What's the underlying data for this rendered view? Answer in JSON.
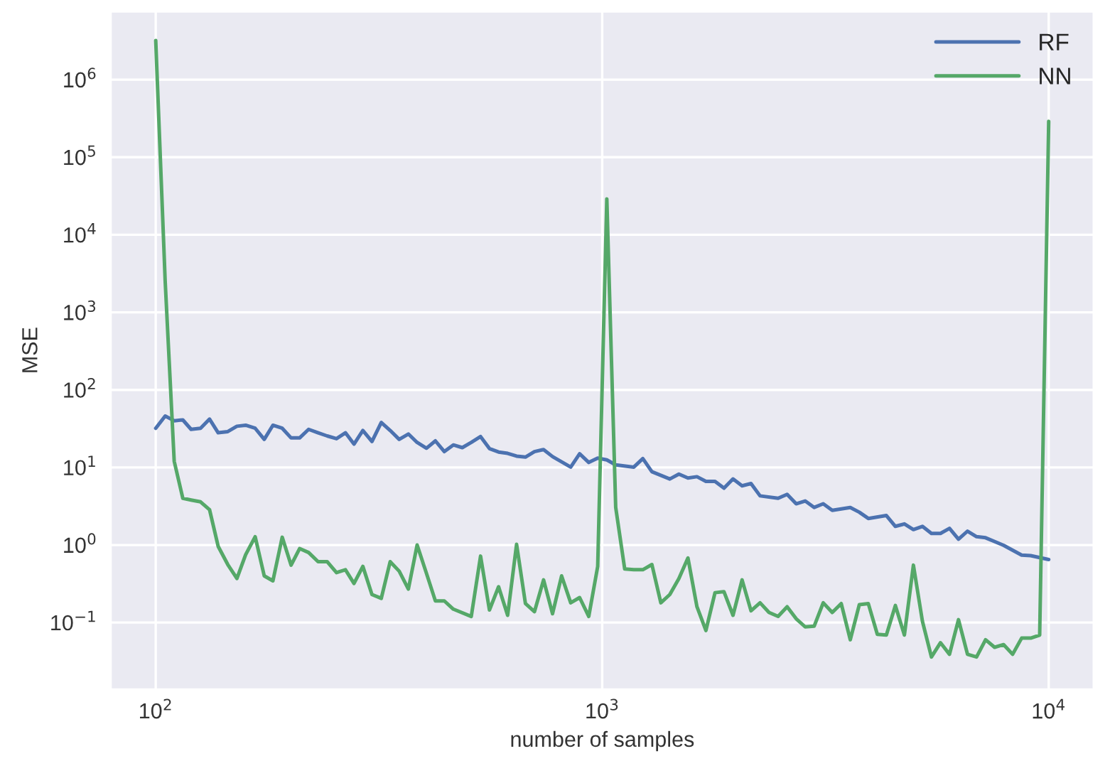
{
  "chart_data": {
    "type": "line",
    "xlabel": "number of samples",
    "ylabel": "MSE",
    "log": "xy",
    "grid": true,
    "legend": "top right",
    "line_style": "solid",
    "marker": "none",
    "xlim": [
      79.4,
      12589
    ],
    "ylim": [
      0.0139,
      7500000
    ],
    "xticks": [
      {
        "value": 100,
        "label": "10$^{2}$"
      },
      {
        "value": 1000,
        "label": "10$^{3}$"
      },
      {
        "value": 10000,
        "label": "10$^{4}$"
      }
    ],
    "yticks": [
      {
        "value": 0.1,
        "label": "10$^{−1}$"
      },
      {
        "value": 1,
        "label": "10$^{0}$"
      },
      {
        "value": 10,
        "label": "10$^{1}$"
      },
      {
        "value": 100,
        "label": "10$^{2}$"
      },
      {
        "value": 1000,
        "label": "10$^{3}$"
      },
      {
        "value": 10000,
        "label": "10$^{4}$"
      },
      {
        "value": 100000,
        "label": "10$^{5}$"
      },
      {
        "value": 1000000,
        "label": "10$^{6}$"
      }
    ],
    "series": [
      {
        "name": "RF",
        "color": "#4c72b0",
        "x": [
          100,
          105,
          110,
          115,
          120,
          126,
          132,
          138,
          145,
          152,
          159,
          167,
          175,
          183,
          192,
          201,
          210,
          220,
          231,
          242,
          254,
          266,
          278,
          291,
          305,
          320,
          335,
          351,
          368,
          385,
          404,
          423,
          443,
          464,
          486,
          509,
          534,
          559,
          586,
          614,
          643,
          673,
          705,
          739,
          774,
          850,
          890,
          933,
          977,
          1024,
          1072,
          1177,
          1233,
          1292,
          1417,
          1485,
          1556,
          1630,
          1707,
          1789,
          1874,
          1963,
          2057,
          2154,
          2257,
          2477,
          2595,
          2719,
          2848,
          2984,
          3126,
          3275,
          3594,
          3765,
          3944,
          4329,
          4535,
          4751,
          4977,
          5214,
          5462,
          5722,
          5995,
          6280,
          6579,
          6893,
          7221,
          7925,
          8697,
          9112,
          10000
        ],
        "values": [
          32,
          46,
          40,
          41,
          31,
          32,
          42,
          28,
          29,
          34,
          35,
          32,
          23,
          35,
          32,
          24,
          24,
          31,
          28,
          25.5,
          23.5,
          28,
          20,
          30,
          21.6,
          38,
          30,
          23,
          27,
          21,
          17.7,
          22,
          16,
          19.5,
          18,
          21,
          25,
          17.5,
          15.8,
          15.2,
          14,
          13.6,
          16,
          17,
          13.8,
          10.1,
          15,
          11.6,
          13.2,
          12.5,
          10.8,
          10.1,
          13,
          8.8,
          7.1,
          8.2,
          7.3,
          7.6,
          6.6,
          6.6,
          5.4,
          7.1,
          5.8,
          6.2,
          4.3,
          4.0,
          4.5,
          3.4,
          3.7,
          3.05,
          3.4,
          2.8,
          3.05,
          2.65,
          2.2,
          2.4,
          1.74,
          1.87,
          1.58,
          1.74,
          1.41,
          1.41,
          1.64,
          1.19,
          1.51,
          1.28,
          1.24,
          0.99,
          0.74,
          0.73,
          0.65
        ]
      },
      {
        "name": "NN",
        "color": "#55a868",
        "x": [
          100,
          105,
          110,
          115,
          120,
          126,
          132,
          138,
          145,
          152,
          159,
          167,
          175,
          183,
          192,
          201,
          210,
          220,
          231,
          242,
          254,
          266,
          278,
          291,
          305,
          320,
          335,
          351,
          368,
          385,
          404,
          423,
          443,
          464,
          509,
          534,
          559,
          586,
          614,
          643,
          673,
          705,
          739,
          774,
          811,
          850,
          890,
          933,
          977,
          1024,
          1072,
          1123,
          1177,
          1233,
          1292,
          1353,
          1417,
          1485,
          1556,
          1630,
          1707,
          1789,
          1874,
          1963,
          2057,
          2154,
          2257,
          2364,
          2477,
          2595,
          2719,
          2848,
          2984,
          3126,
          3275,
          3430,
          3594,
          3765,
          3944,
          4132,
          4329,
          4535,
          4751,
          4977,
          5214,
          5462,
          5722,
          5995,
          6280,
          6579,
          6893,
          7221,
          7565,
          7925,
          8302,
          8697,
          9112,
          9545,
          10000
        ],
        "values": [
          3200000,
          2500,
          12,
          4.0,
          3.8,
          3.6,
          2.85,
          0.96,
          0.56,
          0.37,
          0.75,
          1.28,
          0.4,
          0.345,
          1.26,
          0.55,
          0.9,
          0.8,
          0.61,
          0.61,
          0.44,
          0.48,
          0.32,
          0.53,
          0.23,
          0.205,
          0.61,
          0.46,
          0.27,
          1.0,
          0.43,
          0.19,
          0.19,
          0.149,
          0.12,
          0.72,
          0.145,
          0.29,
          0.124,
          1.02,
          0.176,
          0.138,
          0.355,
          0.13,
          0.4,
          0.18,
          0.21,
          0.12,
          0.53,
          29000,
          3.05,
          0.49,
          0.48,
          0.48,
          0.56,
          0.18,
          0.23,
          0.37,
          0.68,
          0.16,
          0.079,
          0.243,
          0.25,
          0.124,
          0.355,
          0.142,
          0.18,
          0.135,
          0.12,
          0.16,
          0.112,
          0.088,
          0.09,
          0.18,
          0.135,
          0.176,
          0.06,
          0.17,
          0.176,
          0.0705,
          0.069,
          0.166,
          0.069,
          0.55,
          0.104,
          0.036,
          0.055,
          0.039,
          0.109,
          0.039,
          0.036,
          0.06,
          0.048,
          0.052,
          0.039,
          0.063,
          0.063,
          0.069,
          290000
        ]
      }
    ]
  }
}
